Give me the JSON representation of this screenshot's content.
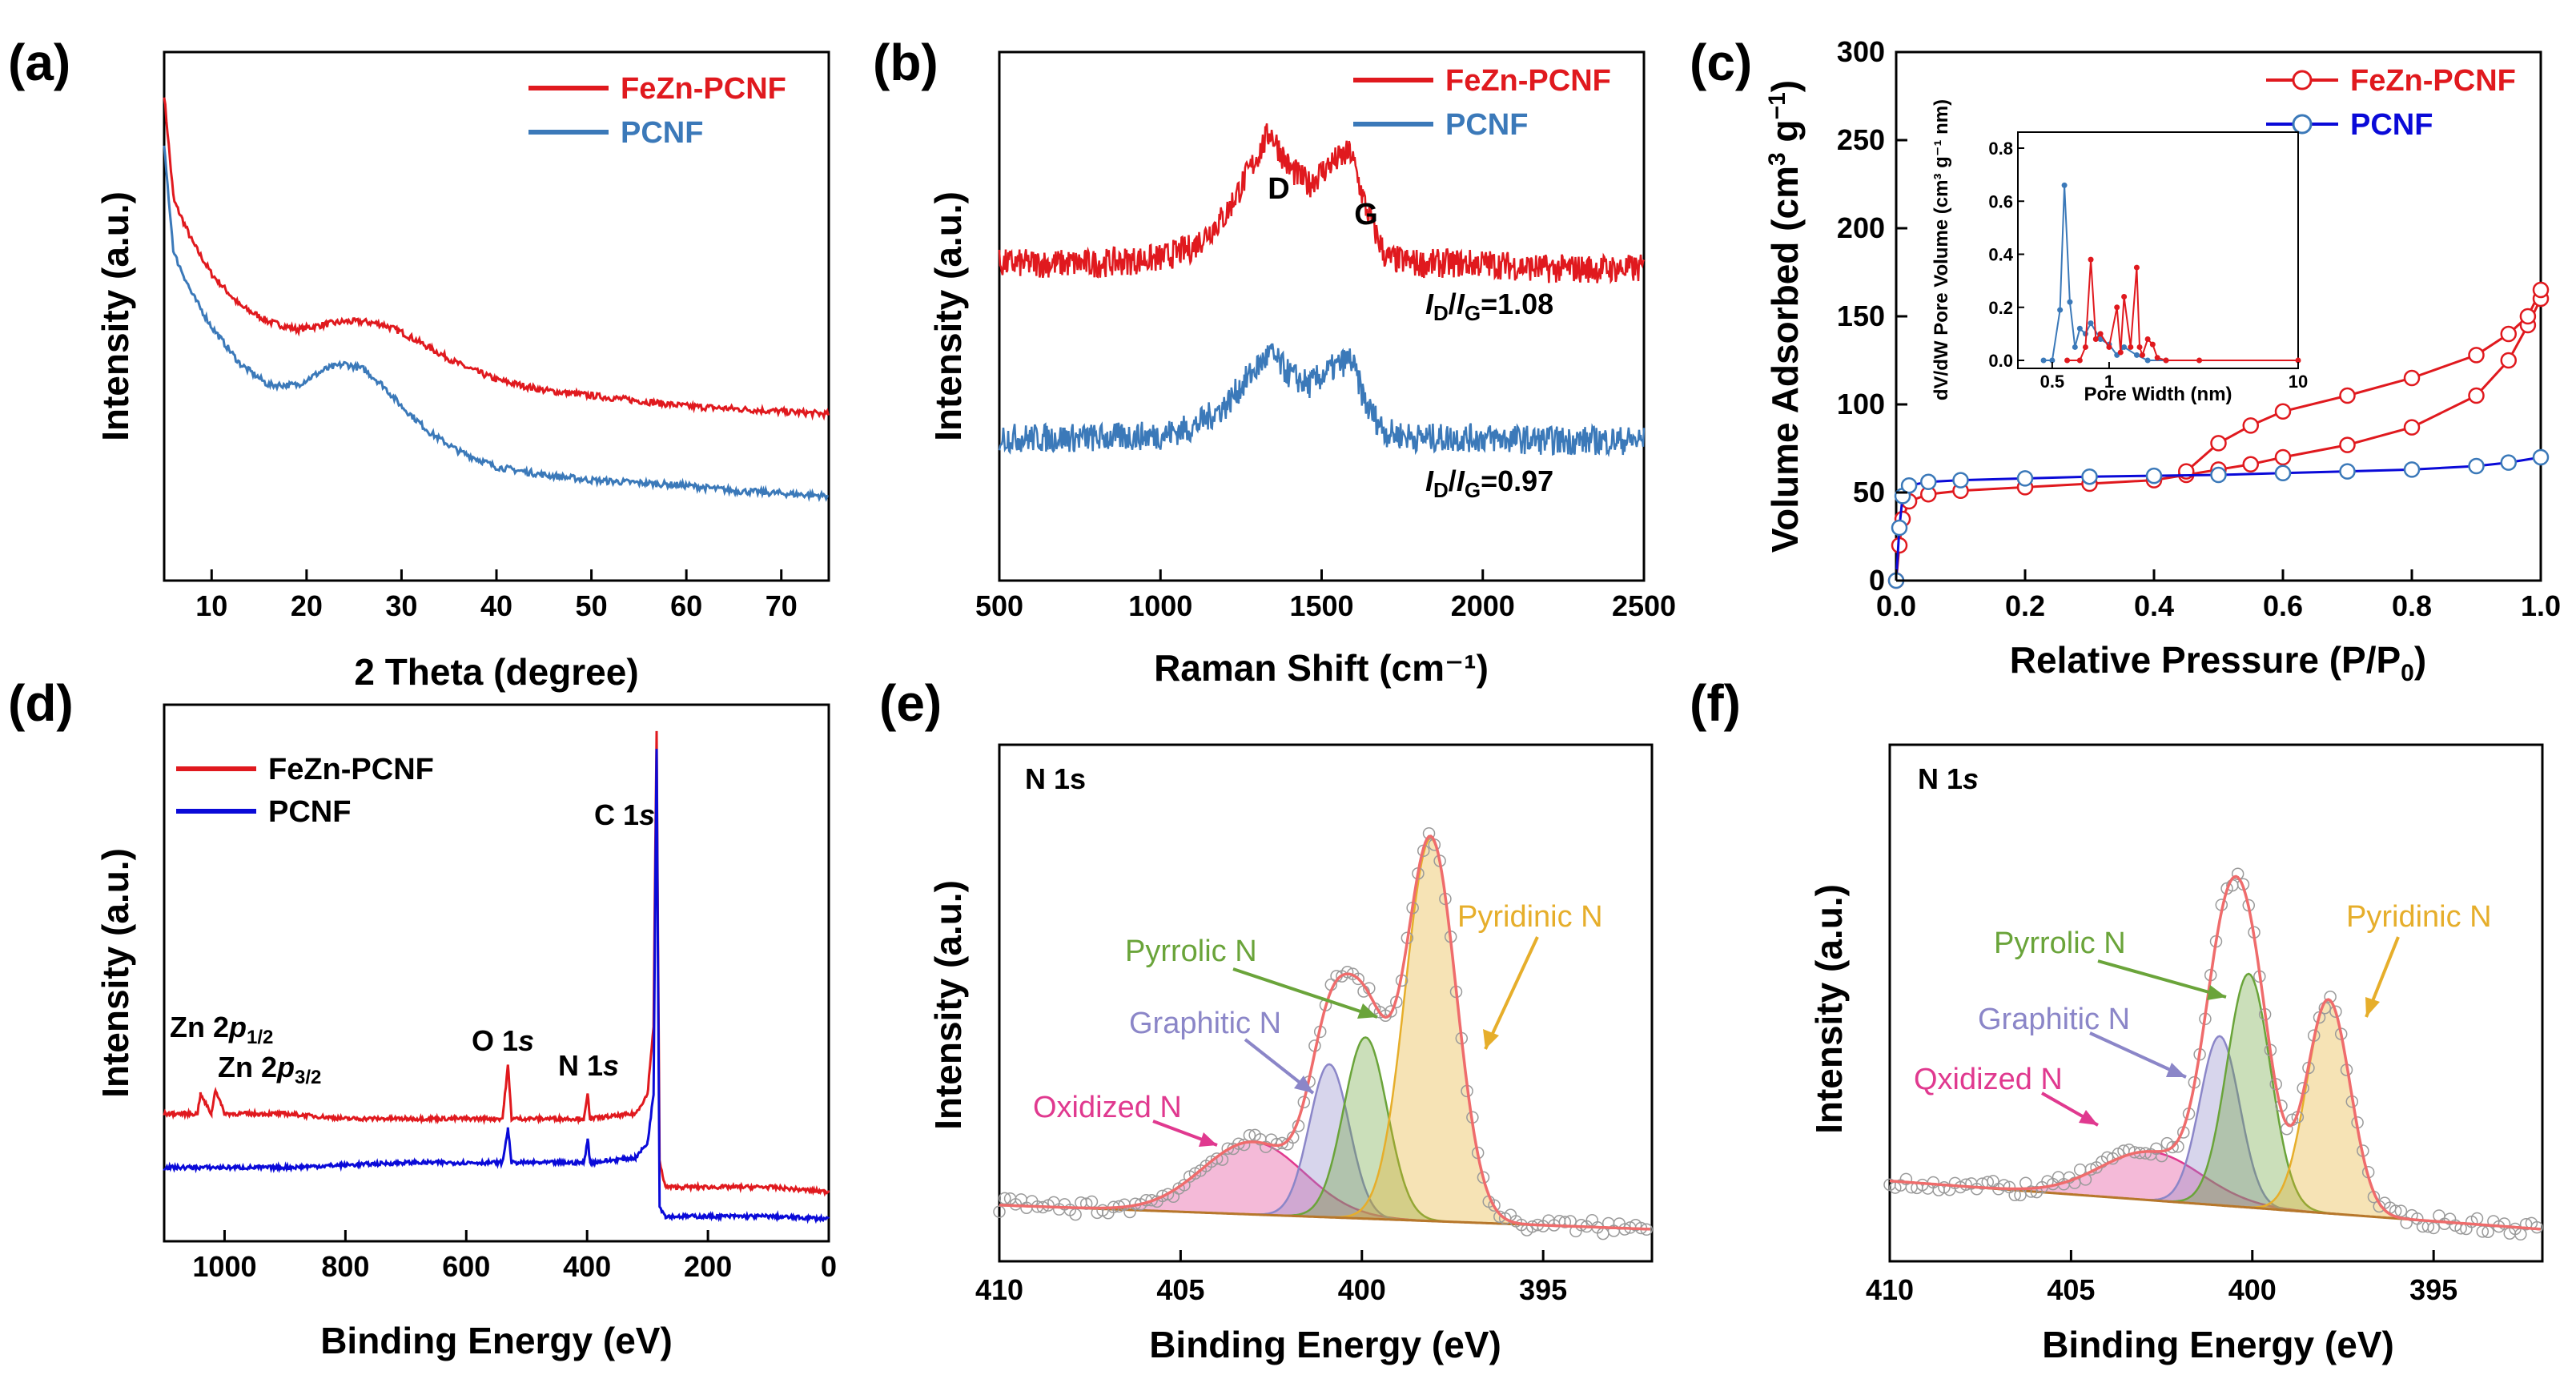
{
  "colors": {
    "red": "#e0191e",
    "steel_blue": "#3b79b9",
    "blue": "#0a0ad8",
    "axis": "#000000",
    "fit_line": "#ef6c6c",
    "data_marker": "#9a9a9a",
    "baseline": "#b7772b",
    "pyridinic": "#e6ae2b",
    "pyrrolic": "#6aa43a",
    "graphitic": "#8b86c8",
    "oxidized": "#e0398f"
  },
  "chart_data": [
    {
      "id": "a",
      "label": "(a)",
      "type": "line",
      "xlabel": "2 Theta (degree)",
      "ylabel": "Intensity (a.u.)",
      "xlim": [
        5,
        75
      ],
      "xticks": [
        10,
        20,
        30,
        40,
        50,
        60,
        70
      ],
      "series": [
        {
          "name": "FeZn-PCNF",
          "color": "#e0191e",
          "x": [
            5,
            6,
            8,
            10,
            13,
            16,
            19,
            22,
            24,
            26,
            28,
            30,
            33,
            36,
            40,
            45,
            50,
            55,
            60,
            65,
            70,
            75
          ],
          "y": [
            0.92,
            0.72,
            0.64,
            0.58,
            0.52,
            0.49,
            0.475,
            0.485,
            0.49,
            0.49,
            0.485,
            0.47,
            0.44,
            0.41,
            0.38,
            0.36,
            0.35,
            0.34,
            0.33,
            0.325,
            0.32,
            0.315
          ]
        },
        {
          "name": "PCNF",
          "color": "#3b79b9",
          "x": [
            5,
            6,
            8,
            10,
            13,
            16,
            19,
            22,
            24,
            26,
            28,
            30,
            33,
            36,
            40,
            45,
            50,
            55,
            60,
            65,
            70,
            75
          ],
          "y": [
            0.82,
            0.62,
            0.54,
            0.48,
            0.41,
            0.37,
            0.37,
            0.4,
            0.41,
            0.4,
            0.37,
            0.33,
            0.28,
            0.245,
            0.215,
            0.2,
            0.19,
            0.185,
            0.18,
            0.17,
            0.165,
            0.16
          ]
        }
      ]
    },
    {
      "id": "b",
      "label": "(b)",
      "type": "line",
      "xlabel": "Raman Shift (cm⁻¹)",
      "ylabel": "Intensity (a.u.)",
      "xlim": [
        500,
        2500
      ],
      "xticks": [
        500,
        1000,
        1500,
        2000,
        2500
      ],
      "peak_labels": [
        {
          "text": "D",
          "x": 1350
        },
        {
          "text": "G",
          "x": 1590
        }
      ],
      "ratios": [
        {
          "sub_d": "D",
          "sub_g": "G",
          "prefix": "I",
          "value": "=1.08"
        },
        {
          "sub_d": "D",
          "sub_g": "G",
          "prefix": "I",
          "value": "=0.97"
        }
      ],
      "series": [
        {
          "name": "FeZn-PCNF",
          "color": "#e0191e",
          "x": [
            500,
            800,
            1000,
            1100,
            1200,
            1280,
            1340,
            1400,
            1460,
            1530,
            1590,
            1640,
            1700,
            1800,
            2000,
            2200,
            2500
          ],
          "y": [
            0.6,
            0.6,
            0.61,
            0.63,
            0.69,
            0.78,
            0.85,
            0.78,
            0.75,
            0.79,
            0.81,
            0.7,
            0.61,
            0.6,
            0.6,
            0.59,
            0.59
          ]
        },
        {
          "name": "PCNF",
          "color": "#3b79b9",
          "x": [
            500,
            800,
            1000,
            1100,
            1200,
            1280,
            1340,
            1400,
            1460,
            1530,
            1590,
            1640,
            1700,
            1800,
            2000,
            2200,
            2500
          ],
          "y": [
            0.27,
            0.27,
            0.275,
            0.29,
            0.33,
            0.39,
            0.43,
            0.39,
            0.37,
            0.4,
            0.42,
            0.33,
            0.28,
            0.27,
            0.27,
            0.265,
            0.265
          ]
        }
      ]
    },
    {
      "id": "c",
      "label": "(c)",
      "type": "scatter",
      "xlabel": "Relative Pressure (P/P",
      "xlabel_sub": "0",
      "xlabel_end": ")",
      "ylabel": "Volume Adsorbed (cm",
      "ylabel_sup1": "3",
      "ylabel_mid": " g",
      "ylabel_sup2": "−1",
      "ylabel_end": ")",
      "xlim": [
        0.0,
        1.0
      ],
      "ylim": [
        0,
        300
      ],
      "xticks": [
        "0.0",
        "0.2",
        "0.4",
        "0.6",
        "0.8",
        "1.0"
      ],
      "yticks": [
        "0",
        "50",
        "100",
        "150",
        "200",
        "250",
        "300"
      ],
      "series": [
        {
          "name": "FeZn-PCNF",
          "color": "#e0191e",
          "x": [
            0.0,
            0.005,
            0.01,
            0.02,
            0.05,
            0.1,
            0.2,
            0.3,
            0.4,
            0.45,
            0.5,
            0.55,
            0.6,
            0.7,
            0.8,
            0.9,
            0.95,
            0.98,
            1.0
          ],
          "y": [
            0,
            20,
            35,
            45,
            49,
            51,
            53,
            55,
            57,
            60,
            63,
            66,
            70,
            77,
            87,
            105,
            125,
            145,
            160
          ],
          "desorption_x": [
            1.0,
            0.98,
            0.95,
            0.9,
            0.8,
            0.7,
            0.6,
            0.55,
            0.5,
            0.45
          ],
          "desorption_y": [
            165,
            150,
            140,
            128,
            115,
            105,
            96,
            88,
            78,
            62
          ]
        },
        {
          "name": "PCNF",
          "color": "#0a0ad8",
          "x": [
            0.0,
            0.005,
            0.01,
            0.02,
            0.05,
            0.1,
            0.2,
            0.3,
            0.4,
            0.5,
            0.6,
            0.7,
            0.8,
            0.9,
            0.95,
            1.0
          ],
          "y": [
            0,
            30,
            48,
            54,
            56,
            57,
            58,
            59,
            59.5,
            60,
            61,
            62,
            63,
            65,
            67,
            70
          ]
        }
      ],
      "inset": {
        "xlabel": "Pore Width (nm)",
        "ylabel": "dV/dW Pore Volume (cm³ g⁻¹ nm)",
        "xticks": [
          "0.5",
          "1",
          "10"
        ],
        "yticks": [
          "0.0",
          "0.2",
          "0.4",
          "0.6",
          "0.8"
        ],
        "series": [
          {
            "name": "PCNF",
            "color": "#3b79b9",
            "x": [
              0.45,
              0.5,
              0.55,
              0.58,
              0.62,
              0.66,
              0.7,
              0.75,
              0.8,
              0.9,
              1.0,
              1.1,
              1.2,
              1.4,
              1.6,
              2.0
            ],
            "y": [
              0.0,
              0.0,
              0.19,
              0.66,
              0.22,
              0.05,
              0.12,
              0.1,
              0.14,
              0.08,
              0.06,
              0.02,
              0.05,
              0.02,
              0.0,
              0.0
            ]
          },
          {
            "name": "FeZn-PCNF",
            "color": "#e0191e",
            "x": [
              0.6,
              0.7,
              0.75,
              0.8,
              0.85,
              0.9,
              1.0,
              1.1,
              1.15,
              1.2,
              1.3,
              1.4,
              1.45,
              1.5,
              1.6,
              1.7,
              1.8,
              2.0,
              3.0,
              10.0
            ],
            "y": [
              0.0,
              0.0,
              0.05,
              0.38,
              0.08,
              0.1,
              0.05,
              0.2,
              0.03,
              0.24,
              0.05,
              0.35,
              0.05,
              0.02,
              0.08,
              0.06,
              0.01,
              0.0,
              0.0,
              0.0
            ]
          }
        ]
      }
    },
    {
      "id": "d",
      "label": "(d)",
      "type": "line",
      "xlabel": "Binding Energy (eV)",
      "ylabel": "Intensity (a.u.)",
      "xlim": [
        1100,
        0
      ],
      "xticks": [
        1000,
        800,
        600,
        400,
        200,
        0
      ],
      "annotations": [
        {
          "text": "C 1",
          "italic": "s",
          "x": 285
        },
        {
          "text": "O 1",
          "italic": "s",
          "x": 531
        },
        {
          "text": "N 1",
          "italic": "s",
          "x": 399
        },
        {
          "text": "Zn 2",
          "italic": "p",
          "sub": "1/2",
          "x": 1045
        },
        {
          "text": "Zn 2",
          "italic": "p",
          "sub": "3/2",
          "x": 1022
        }
      ],
      "series": [
        {
          "name": "FeZn-PCNF",
          "color": "#e0191e",
          "x": [
            1100,
            1045,
            1040,
            1022,
            1015,
            1000,
            900,
            800,
            700,
            600,
            540,
            531,
            525,
            450,
            405,
            399,
            395,
            320,
            300,
            290,
            285,
            280,
            270,
            100,
            0
          ],
          "y": [
            0.22,
            0.22,
            0.26,
            0.22,
            0.27,
            0.22,
            0.22,
            0.21,
            0.21,
            0.21,
            0.21,
            0.32,
            0.21,
            0.21,
            0.21,
            0.26,
            0.21,
            0.22,
            0.26,
            0.4,
            1.0,
            0.12,
            0.07,
            0.07,
            0.06
          ]
        },
        {
          "name": "PCNF",
          "color": "#0a0ad8",
          "x": [
            1100,
            900,
            700,
            540,
            531,
            525,
            405,
            399,
            395,
            320,
            300,
            290,
            285,
            280,
            270,
            100,
            0
          ],
          "y": [
            0.11,
            0.11,
            0.12,
            0.12,
            0.19,
            0.12,
            0.12,
            0.17,
            0.12,
            0.13,
            0.16,
            0.26,
            0.97,
            0.03,
            0.01,
            0.01,
            0.005
          ]
        }
      ]
    },
    {
      "id": "e",
      "label": "(e)",
      "type": "area",
      "title": "N 1s",
      "xlabel": "Binding Energy (eV)",
      "ylabel": "Intensity (a.u.)",
      "xlim": [
        410,
        392
      ],
      "xticks": [
        410,
        405,
        400,
        395
      ],
      "components": [
        {
          "name": "Oxidized N",
          "center": 403.0,
          "height": 0.18,
          "width": 1.4,
          "color": "#e0398f"
        },
        {
          "name": "Graphitic N",
          "center": 400.9,
          "height": 0.38,
          "width": 0.55,
          "color": "#8b86c8"
        },
        {
          "name": "Pyrrolic N",
          "center": 399.9,
          "height": 0.45,
          "width": 0.6,
          "color": "#6aa43a"
        },
        {
          "name": "Pyridinic N",
          "center": 398.1,
          "height": 0.95,
          "width": 0.7,
          "color": "#e6ae2b"
        }
      ],
      "baseline": {
        "left": 0.06,
        "right": 0.0
      }
    },
    {
      "id": "f",
      "label": "(f)",
      "type": "area",
      "title": "N 1",
      "title_italic": "s",
      "xlabel": "Binding Energy (eV)",
      "ylabel": "Intensity (a.u.)",
      "xlim": [
        410,
        392
      ],
      "xticks": [
        410,
        405,
        400,
        395
      ],
      "components": [
        {
          "name": "Qxidized N",
          "center": 402.8,
          "height": 0.12,
          "width": 1.4,
          "color": "#e0398f"
        },
        {
          "name": "Graphitic N",
          "center": 400.9,
          "height": 0.42,
          "width": 0.55,
          "color": "#8b86c8"
        },
        {
          "name": "Pyrrolic N",
          "center": 400.1,
          "height": 0.58,
          "width": 0.6,
          "color": "#6aa43a"
        },
        {
          "name": "Pyridinic N",
          "center": 397.9,
          "height": 0.53,
          "width": 0.6,
          "color": "#e6ae2b"
        }
      ],
      "baseline": {
        "left": 0.12,
        "right": 0.0
      }
    }
  ]
}
